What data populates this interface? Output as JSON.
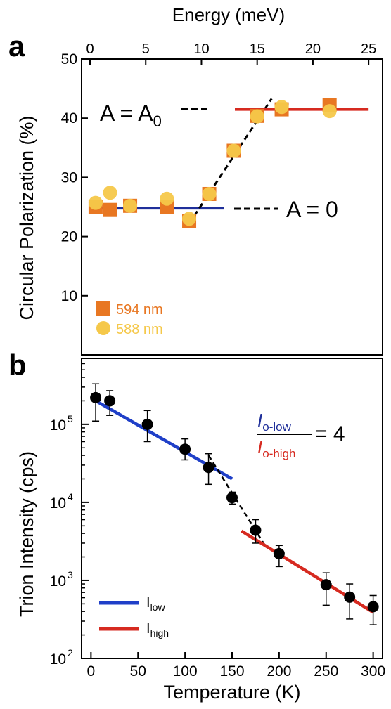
{
  "chart_data": [
    {
      "panel": "a",
      "type": "scatter",
      "ylabel": "Circular Polarization (%)",
      "x2label": "Energy (meV)",
      "x2lim": [
        0,
        26
      ],
      "x2ticks": [
        "0",
        "5",
        "10",
        "15",
        "20",
        "25"
      ],
      "ylim": [
        0,
        50
      ],
      "yticks": [
        "10",
        "20",
        "30",
        "40",
        "50"
      ],
      "series": [
        {
          "name": "594 nm",
          "color": "#e87722",
          "marker": "square",
          "points": [
            [
              0.5,
              25.0
            ],
            [
              1.8,
              24.5
            ],
            [
              3.6,
              25.2
            ],
            [
              6.9,
              25.0
            ],
            [
              8.9,
              22.6
            ],
            [
              10.7,
              27.2
            ],
            [
              12.9,
              34.5
            ],
            [
              15.0,
              40.4
            ],
            [
              17.2,
              41.5
            ],
            [
              21.5,
              42.2
            ]
          ]
        },
        {
          "name": "588 nm",
          "color": "#f5c84a",
          "marker": "circle",
          "points": [
            [
              0.5,
              25.7
            ],
            [
              1.8,
              27.4
            ],
            [
              3.6,
              25.2
            ],
            [
              6.9,
              26.4
            ],
            [
              8.9,
              23.0
            ],
            [
              10.7,
              27.2
            ],
            [
              12.9,
              34.5
            ],
            [
              15.0,
              40.3
            ],
            [
              17.2,
              41.9
            ],
            [
              21.5,
              41.2
            ]
          ]
        }
      ],
      "fits": [
        {
          "color": "#1f2f9a",
          "style": "solid",
          "x": [
            0,
            12
          ],
          "y": [
            24.8,
            24.8
          ]
        },
        {
          "color": "#000000",
          "style": "dashed",
          "x": [
            8.9,
            16.3
          ],
          "y": [
            22.2,
            43.3
          ]
        },
        {
          "color": "#d62a20",
          "style": "solid",
          "x": [
            13,
            25
          ],
          "y": [
            41.5,
            41.5
          ]
        }
      ],
      "annotations": {
        "a0_text": "A = A",
        "a0_subscript": "0",
        "zero_text": "A = 0"
      }
    },
    {
      "panel": "b",
      "type": "scatter",
      "xlabel": "Temperature (K)",
      "ylabel": "Trion Intensity (cps)",
      "xlim": [
        -10,
        310
      ],
      "xticks": [
        "0",
        "50",
        "100",
        "150",
        "200",
        "250",
        "300"
      ],
      "yscale": "log",
      "ylim": [
        100,
        700000
      ],
      "ytick_bases": [
        "10",
        "10",
        "10",
        "10"
      ],
      "ytick_exps": [
        "2",
        "3",
        "4",
        "5"
      ],
      "series": [
        {
          "name": "",
          "color": "#000000",
          "marker": "circle",
          "points": [
            [
              5,
              220000
            ],
            [
              20,
              200000
            ],
            [
              60,
              100000
            ],
            [
              100,
              48000
            ],
            [
              125,
              28000
            ],
            [
              150,
              11500
            ],
            [
              175,
              4400
            ],
            [
              200,
              2200
            ],
            [
              250,
              880
            ],
            [
              275,
              610
            ],
            [
              300,
              460
            ]
          ],
          "err_low": [
            110000,
            130000,
            60000,
            35000,
            17000,
            9500,
            3000,
            1500,
            480,
            320,
            270
          ],
          "err_high": [
            330000,
            270000,
            150000,
            65000,
            42000,
            13500,
            6000,
            2800,
            1250,
            900,
            640
          ]
        }
      ],
      "fits": [
        {
          "name": "I_low",
          "color": "#1f3fc8",
          "style": "solid",
          "x": [
            5,
            150
          ],
          "y": [
            200000,
            20000
          ]
        },
        {
          "name": "",
          "color": "#000000",
          "style": "dashed",
          "x": [
            125,
            185
          ],
          "y": [
            40000,
            2800
          ]
        },
        {
          "name": "I_high",
          "color": "#d62a20",
          "style": "solid",
          "x": [
            160,
            300
          ],
          "y": [
            4300,
            390
          ]
        }
      ],
      "legend": {
        "low_main": "I",
        "low_sub": "low",
        "high_main": "I",
        "high_sub": "high"
      },
      "ratio": {
        "num_main": "I",
        "num_sub": "o-low",
        "den_main": "I",
        "den_sub": "o-high",
        "value": "= 4",
        "num_color": "#1f2f9a",
        "den_color": "#d62a20"
      }
    }
  ],
  "labels": {
    "panel_a": "a",
    "panel_b": "b"
  }
}
